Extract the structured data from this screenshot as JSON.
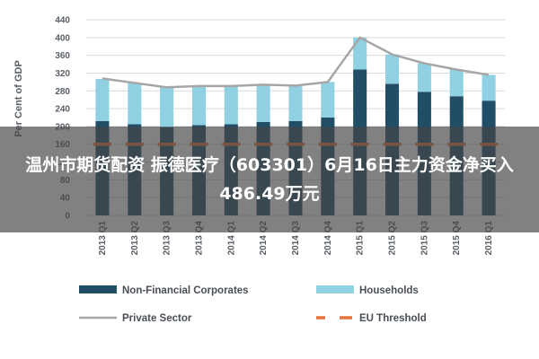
{
  "headline": "温州市期货配资 振德医疗（603301）6月16日主力资金净买入486.49万元",
  "chart_data": {
    "type": "bar",
    "stacked": true,
    "ylabel": "Per Cent of GDP",
    "ylim": [
      0,
      440
    ],
    "yticks": [
      0,
      40,
      80,
      120,
      160,
      200,
      240,
      280,
      320,
      360,
      400,
      440
    ],
    "grid": true,
    "legend_position": "bottom",
    "categories": [
      "2013 Q1",
      "2013 Q2",
      "2013 Q3",
      "2013 Q4",
      "2014 Q1",
      "2014 Q2",
      "2014 Q3",
      "2014 Q4",
      "2015 Q1",
      "2015 Q2",
      "2015 Q3",
      "2015 Q4",
      "2016 Q1"
    ],
    "series": [
      {
        "name": "Non-Financial Corporates",
        "kind": "bar",
        "color": "#1f4e66",
        "values": [
          212,
          205,
          198,
          203,
          205,
          210,
          212,
          220,
          328,
          296,
          278,
          268,
          258
        ]
      },
      {
        "name": "Households",
        "kind": "bar",
        "color": "#8fd0e3",
        "values": [
          95,
          93,
          90,
          88,
          86,
          84,
          80,
          80,
          72,
          66,
          64,
          60,
          58
        ]
      },
      {
        "name": "Private Sector",
        "kind": "line",
        "color": "#a6a6a6",
        "values": [
          308,
          298,
          288,
          291,
          291,
          294,
          292,
          300,
          400,
          362,
          342,
          328,
          316
        ]
      },
      {
        "name": "EU Threshold",
        "kind": "dashed",
        "color": "#e8743b",
        "values": [
          160,
          160,
          160,
          160,
          160,
          160,
          160,
          160,
          160,
          160,
          160,
          160,
          160
        ]
      }
    ]
  }
}
